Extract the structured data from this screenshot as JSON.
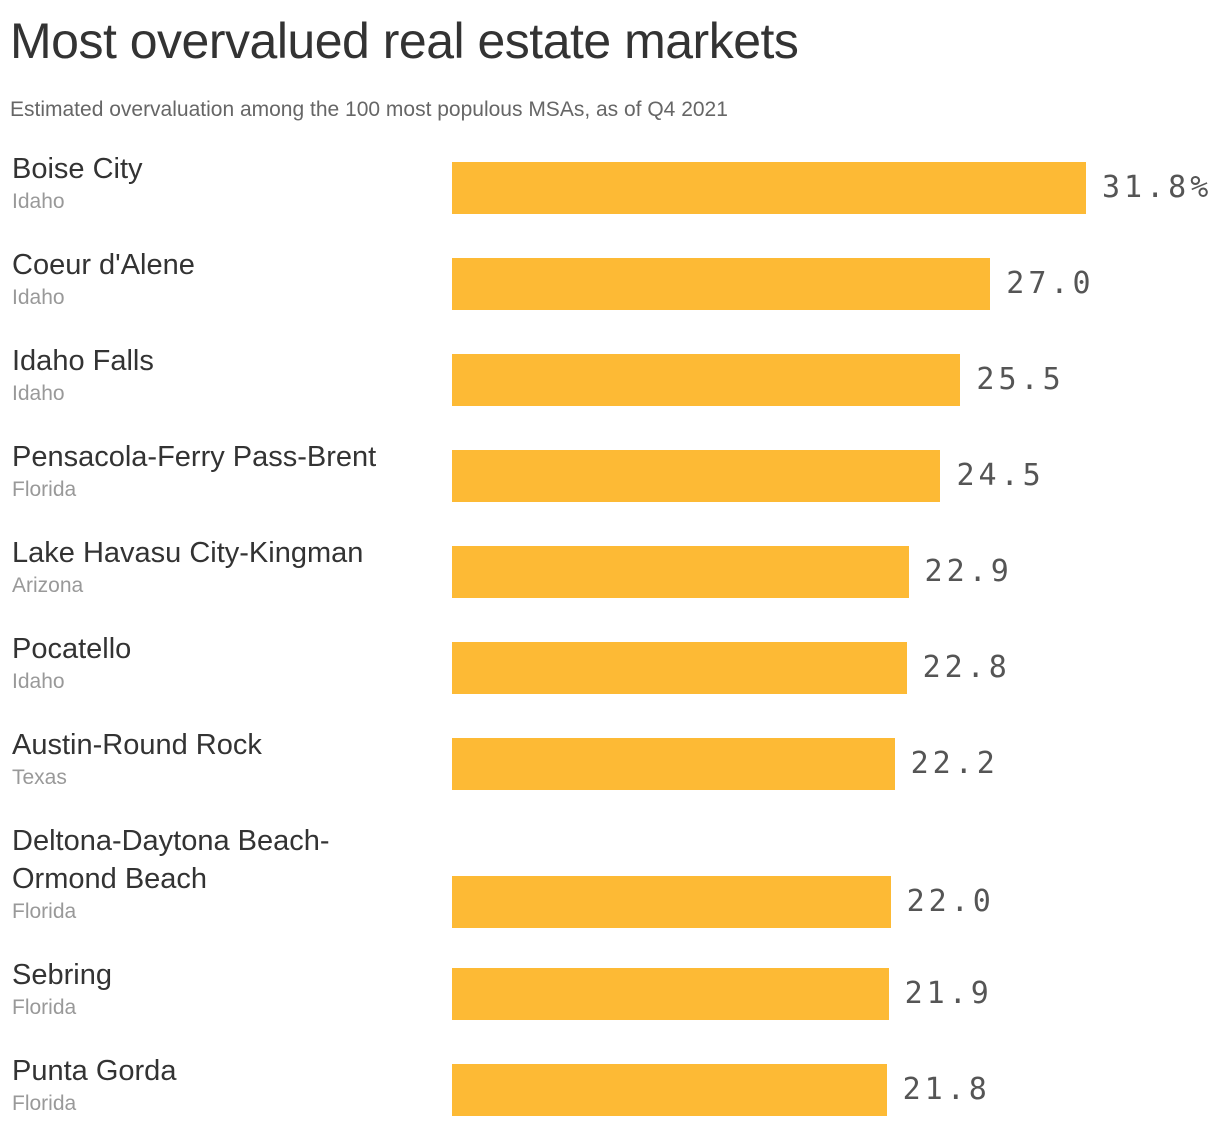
{
  "chart_data": {
    "type": "bar",
    "orientation": "horizontal",
    "title": "Most overvalued real estate markets",
    "subtitle": "Estimated overvaluation among the 100 most populous MSAs, as of Q4 2021",
    "bar_color": "#FDBA35",
    "categories": [
      {
        "name": "Boise City",
        "state": "Idaho",
        "value": 31.8,
        "label": "31.8%"
      },
      {
        "name": "Coeur d'Alene",
        "state": "Idaho",
        "value": 27.0,
        "label": "27.0"
      },
      {
        "name": "Idaho Falls",
        "state": "Idaho",
        "value": 25.5,
        "label": "25.5"
      },
      {
        "name": "Pensacola-Ferry Pass-Brent",
        "state": "Florida",
        "value": 24.5,
        "label": "24.5"
      },
      {
        "name": "Lake Havasu City-Kingman",
        "state": "Arizona",
        "value": 22.9,
        "label": "22.9"
      },
      {
        "name": "Pocatello",
        "state": "Idaho",
        "value": 22.8,
        "label": "22.8"
      },
      {
        "name": "Austin-Round Rock",
        "state": "Texas",
        "value": 22.2,
        "label": "22.2"
      },
      {
        "name": "Deltona-Daytona Beach-Ormond Beach",
        "state": "Florida",
        "value": 22.0,
        "label": "22.0"
      },
      {
        "name": "Sebring",
        "state": "Florida",
        "value": 21.9,
        "label": "21.9"
      },
      {
        "name": "Punta Gorda",
        "state": "Florida",
        "value": 21.8,
        "label": "21.8"
      }
    ]
  }
}
